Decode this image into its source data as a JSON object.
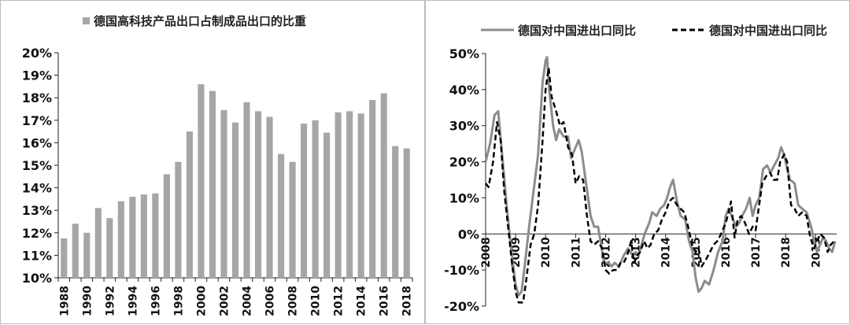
{
  "chart_data": [
    {
      "type": "bar",
      "legend_position": "top",
      "series": [
        {
          "name": "德国高科技产品出口占制成品出口的比重",
          "color": "#a6a6a6",
          "x": [
            1988,
            1989,
            1990,
            1991,
            1992,
            1993,
            1994,
            1995,
            1996,
            1997,
            1998,
            1999,
            2000,
            2001,
            2002,
            2003,
            2004,
            2005,
            2006,
            2007,
            2008,
            2009,
            2010,
            2011,
            2012,
            2013,
            2014,
            2015,
            2016,
            2017,
            2018
          ],
          "values": [
            11.75,
            12.4,
            12.0,
            13.1,
            12.65,
            13.4,
            13.6,
            13.7,
            13.75,
            14.6,
            15.15,
            16.5,
            18.6,
            18.3,
            17.45,
            16.9,
            17.8,
            17.4,
            17.15,
            15.5,
            15.15,
            16.85,
            17.0,
            16.45,
            17.35,
            17.4,
            17.3,
            17.9,
            18.2,
            15.85,
            15.75
          ]
        }
      ],
      "x_tick_labels": [
        "1988",
        "1990",
        "1992",
        "1994",
        "1996",
        "1998",
        "2000",
        "2002",
        "2004",
        "2006",
        "2008",
        "2010",
        "2012",
        "2014",
        "2016",
        "2018"
      ],
      "y_tick_labels": [
        "10%",
        "11%",
        "12%",
        "13%",
        "14%",
        "15%",
        "16%",
        "17%",
        "18%",
        "19%",
        "20%"
      ],
      "ylim": [
        10,
        20
      ],
      "grid": false
    },
    {
      "type": "line",
      "legend_position": "top",
      "series": [
        {
          "name": "德国对中国进出口同比",
          "color": "#8c8c8c",
          "style": "solid",
          "points": [
            [
              2008.0,
              20
            ],
            [
              2008.15,
              25
            ],
            [
              2008.3,
              33
            ],
            [
              2008.42,
              34
            ],
            [
              2008.55,
              22
            ],
            [
              2008.7,
              8
            ],
            [
              2008.85,
              -4
            ],
            [
              2009.0,
              -14
            ],
            [
              2009.1,
              -17
            ],
            [
              2009.2,
              -16
            ],
            [
              2009.3,
              -9
            ],
            [
              2009.45,
              2
            ],
            [
              2009.6,
              12
            ],
            [
              2009.75,
              22
            ],
            [
              2009.9,
              42
            ],
            [
              2010.0,
              48
            ],
            [
              2010.05,
              49
            ],
            [
              2010.12,
              40
            ],
            [
              2010.25,
              30
            ],
            [
              2010.35,
              26
            ],
            [
              2010.45,
              29
            ],
            [
              2010.6,
              27
            ],
            [
              2010.75,
              27
            ],
            [
              2010.85,
              21
            ],
            [
              2011.0,
              24
            ],
            [
              2011.1,
              26
            ],
            [
              2011.2,
              23
            ],
            [
              2011.35,
              14
            ],
            [
              2011.5,
              5
            ],
            [
              2011.62,
              2
            ],
            [
              2011.75,
              2
            ],
            [
              2011.85,
              -3
            ],
            [
              2011.95,
              -8
            ],
            [
              2012.1,
              -8
            ],
            [
              2012.2,
              -9
            ],
            [
              2012.3,
              -8
            ],
            [
              2012.45,
              -9
            ],
            [
              2012.6,
              -6
            ],
            [
              2012.75,
              -4
            ],
            [
              2012.9,
              -6
            ],
            [
              2013.0,
              -5
            ],
            [
              2013.1,
              -6
            ],
            [
              2013.2,
              -3
            ],
            [
              2013.3,
              0
            ],
            [
              2013.45,
              3
            ],
            [
              2013.55,
              6
            ],
            [
              2013.7,
              5
            ],
            [
              2013.82,
              7
            ],
            [
              2013.95,
              8
            ],
            [
              2014.05,
              10
            ],
            [
              2014.15,
              13
            ],
            [
              2014.25,
              15
            ],
            [
              2014.38,
              9
            ],
            [
              2014.5,
              5
            ],
            [
              2014.65,
              4
            ],
            [
              2014.78,
              -2
            ],
            [
              2014.9,
              -5
            ],
            [
              2015.0,
              -12
            ],
            [
              2015.1,
              -16
            ],
            [
              2015.2,
              -15
            ],
            [
              2015.3,
              -13
            ],
            [
              2015.45,
              -14
            ],
            [
              2015.6,
              -10
            ],
            [
              2015.75,
              -5
            ],
            [
              2015.9,
              -2
            ],
            [
              2016.0,
              5
            ],
            [
              2016.1,
              7
            ],
            [
              2016.2,
              5
            ],
            [
              2016.35,
              2
            ],
            [
              2016.45,
              3
            ],
            [
              2016.55,
              5
            ],
            [
              2016.68,
              7
            ],
            [
              2016.8,
              10
            ],
            [
              2016.9,
              5
            ],
            [
              2017.0,
              8
            ],
            [
              2017.12,
              10
            ],
            [
              2017.25,
              18
            ],
            [
              2017.38,
              19
            ],
            [
              2017.5,
              17
            ],
            [
              2017.62,
              19
            ],
            [
              2017.75,
              21
            ],
            [
              2017.85,
              24
            ],
            [
              2017.95,
              22
            ],
            [
              2018.05,
              18
            ],
            [
              2018.15,
              15
            ],
            [
              2018.3,
              14
            ],
            [
              2018.42,
              8
            ],
            [
              2018.55,
              7
            ],
            [
              2018.7,
              6
            ],
            [
              2018.85,
              2
            ],
            [
              2018.95,
              -2
            ],
            [
              2019.05,
              -5
            ],
            [
              2019.15,
              -3
            ],
            [
              2019.25,
              -1
            ],
            [
              2019.35,
              -2
            ],
            [
              2019.45,
              -4
            ],
            [
              2019.55,
              -5
            ],
            [
              2019.65,
              -2
            ]
          ]
        },
        {
          "name": "德国对中国进出口同比",
          "color": "#000000",
          "style": "dashed",
          "points": [
            [
              2008.0,
              14
            ],
            [
              2008.1,
              13
            ],
            [
              2008.25,
              20
            ],
            [
              2008.38,
              31
            ],
            [
              2008.5,
              26
            ],
            [
              2008.62,
              12
            ],
            [
              2008.75,
              2
            ],
            [
              2008.88,
              -8
            ],
            [
              2009.0,
              -16
            ],
            [
              2009.1,
              -19
            ],
            [
              2009.25,
              -19
            ],
            [
              2009.35,
              -13
            ],
            [
              2009.5,
              -3
            ],
            [
              2009.62,
              0
            ],
            [
              2009.75,
              8
            ],
            [
              2009.9,
              26
            ],
            [
              2010.0,
              40
            ],
            [
              2010.1,
              46
            ],
            [
              2010.2,
              38
            ],
            [
              2010.35,
              34
            ],
            [
              2010.48,
              30
            ],
            [
              2010.6,
              31
            ],
            [
              2010.75,
              24
            ],
            [
              2010.88,
              22
            ],
            [
              2011.0,
              14
            ],
            [
              2011.12,
              16
            ],
            [
              2011.25,
              15
            ],
            [
              2011.38,
              5
            ],
            [
              2011.5,
              -2
            ],
            [
              2011.62,
              -3
            ],
            [
              2011.75,
              -2
            ],
            [
              2011.88,
              -4
            ],
            [
              2012.0,
              -10
            ],
            [
              2012.12,
              -11
            ],
            [
              2012.25,
              -10
            ],
            [
              2012.38,
              -10
            ],
            [
              2012.5,
              -8
            ],
            [
              2012.6,
              -8
            ],
            [
              2012.72,
              -6
            ],
            [
              2012.85,
              -2
            ],
            [
              2012.95,
              -8
            ],
            [
              2013.05,
              -6
            ],
            [
              2013.15,
              -5
            ],
            [
              2013.28,
              -2
            ],
            [
              2013.4,
              -4
            ],
            [
              2013.5,
              -3
            ],
            [
              2013.62,
              0
            ],
            [
              2013.75,
              1
            ],
            [
              2013.88,
              4
            ],
            [
              2014.0,
              6
            ],
            [
              2014.12,
              9
            ],
            [
              2014.25,
              10
            ],
            [
              2014.38,
              8
            ],
            [
              2014.5,
              7
            ],
            [
              2014.62,
              6
            ],
            [
              2014.75,
              2
            ],
            [
              2014.88,
              -3
            ],
            [
              2015.0,
              -5
            ],
            [
              2015.1,
              -4
            ],
            [
              2015.2,
              -9
            ],
            [
              2015.35,
              -7
            ],
            [
              2015.48,
              -5
            ],
            [
              2015.6,
              -3
            ],
            [
              2015.72,
              -2
            ],
            [
              2015.85,
              0
            ],
            [
              2016.0,
              3
            ],
            [
              2016.1,
              6
            ],
            [
              2016.18,
              9
            ],
            [
              2016.3,
              -1
            ],
            [
              2016.4,
              4
            ],
            [
              2016.52,
              5
            ],
            [
              2016.65,
              3
            ],
            [
              2016.78,
              0
            ],
            [
              2016.9,
              2
            ],
            [
              2017.0,
              1
            ],
            [
              2017.1,
              7
            ],
            [
              2017.22,
              14
            ],
            [
              2017.35,
              16
            ],
            [
              2017.48,
              17
            ],
            [
              2017.6,
              15
            ],
            [
              2017.72,
              15
            ],
            [
              2017.82,
              20
            ],
            [
              2017.95,
              22
            ],
            [
              2018.05,
              20
            ],
            [
              2018.18,
              8
            ],
            [
              2018.3,
              7
            ],
            [
              2018.42,
              5
            ],
            [
              2018.55,
              6
            ],
            [
              2018.7,
              5
            ],
            [
              2018.82,
              -1
            ],
            [
              2018.95,
              -4
            ],
            [
              2019.05,
              -2
            ],
            [
              2019.15,
              0
            ],
            [
              2019.28,
              -1
            ],
            [
              2019.4,
              -5
            ],
            [
              2019.5,
              -3
            ],
            [
              2019.62,
              -2
            ]
          ]
        }
      ],
      "x_tick_labels": [
        "2008",
        "2009",
        "2010",
        "2011",
        "2012",
        "2013",
        "2014",
        "2015",
        "2016",
        "2017",
        "2018",
        "2019"
      ],
      "y_tick_labels": [
        "-20%",
        "-10%",
        "0%",
        "10%",
        "20%",
        "30%",
        "40%",
        "50%"
      ],
      "xlim": [
        2008,
        2019.7
      ],
      "ylim": [
        -20,
        50
      ],
      "grid": false
    }
  ]
}
